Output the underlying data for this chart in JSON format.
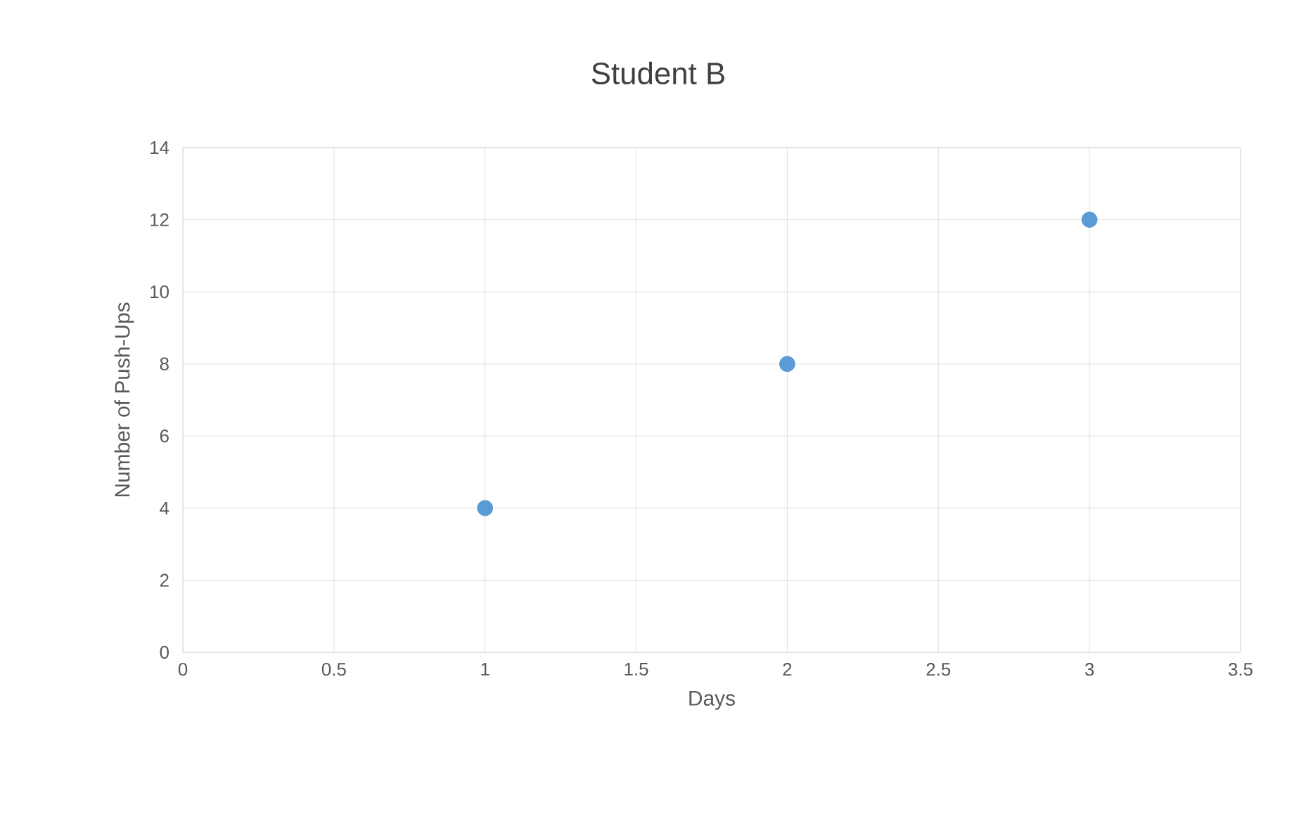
{
  "chart_data": {
    "type": "scatter",
    "title": "Student B",
    "xlabel": "Days",
    "ylabel": "Number of Push-Ups",
    "x": [
      1,
      2,
      3
    ],
    "series": [
      {
        "color": "#5b9bd5",
        "values": [
          4,
          8,
          12
        ]
      }
    ],
    "xlim": [
      0,
      3.5
    ],
    "ylim": [
      0,
      14
    ],
    "xticks": [
      0,
      0.5,
      1,
      1.5,
      2,
      2.5,
      3,
      3.5
    ],
    "yticks": [
      0,
      2,
      4,
      6,
      8,
      10,
      12,
      14
    ],
    "grid": true,
    "marker": "circle"
  }
}
